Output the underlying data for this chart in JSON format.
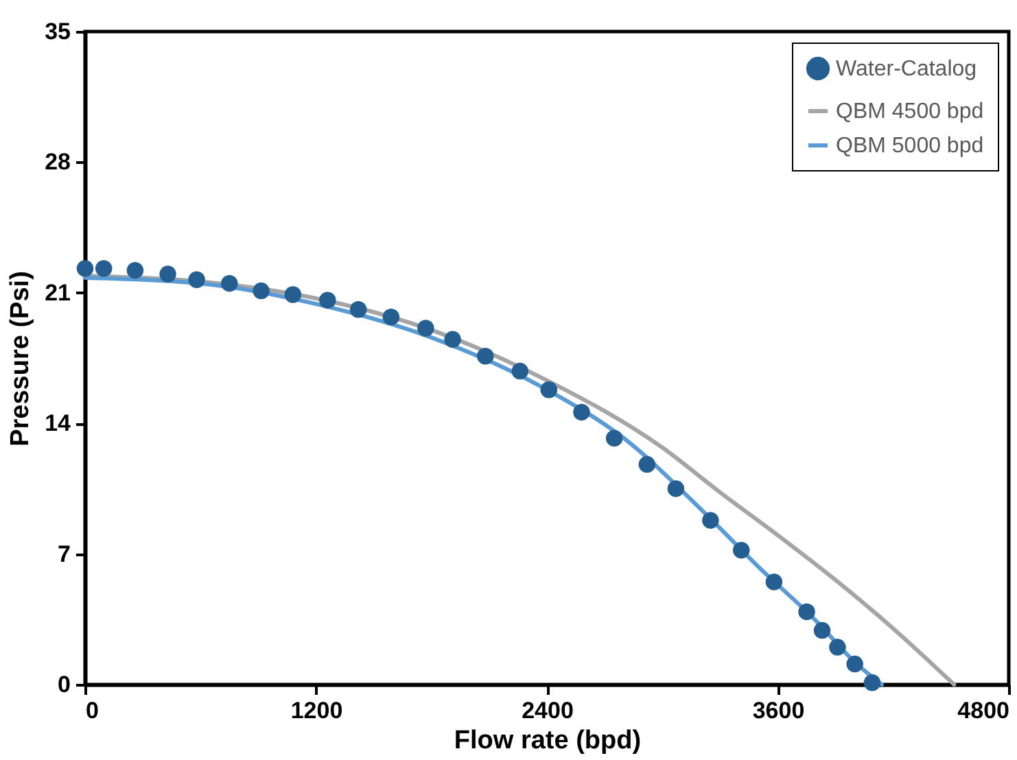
{
  "chart_data": {
    "type": "scatter",
    "xlabel": "Flow rate (bpd)",
    "ylabel": "Pressure (Psi)",
    "xlim": [
      0,
      4800
    ],
    "xticks": [
      0,
      1200,
      2400,
      3600,
      4800
    ],
    "ylim": [
      0,
      35
    ],
    "yticks": [
      0,
      7,
      14,
      21,
      28,
      35
    ],
    "grid": false,
    "legend": "top right",
    "series": [
      {
        "name": "Water-Catalog",
        "marker": "circle",
        "color": "#255e91",
        "x": [
          0,
          97,
          260,
          430,
          580,
          750,
          915,
          1080,
          1260,
          1420,
          1590,
          1770,
          1910,
          2080,
          2260,
          2410,
          2580,
          2750,
          2920,
          3070,
          3250,
          3410,
          3580,
          3750,
          3830,
          3910,
          4000,
          4090
        ],
        "values": [
          22.3,
          22.3,
          22.2,
          22.0,
          21.7,
          21.5,
          21.1,
          20.9,
          20.6,
          20.1,
          19.7,
          19.1,
          18.5,
          17.6,
          16.8,
          15.8,
          14.6,
          13.2,
          11.8,
          10.5,
          8.8,
          7.2,
          5.5,
          3.9,
          2.9,
          2.0,
          1.1,
          0.1
        ]
      },
      {
        "name": "QBM 4500 bpd",
        "type": "line",
        "marker": "none",
        "line_style": "solid",
        "color": "#a5a5a5",
        "x": [
          0,
          600,
          1200,
          1800,
          2400,
          3000,
          3300,
          3600,
          3900,
          4200,
          4516
        ],
        "values": [
          21.9,
          21.6,
          20.7,
          19.0,
          16.3,
          12.7,
          10.3,
          8.0,
          5.6,
          3.0,
          0
        ]
      },
      {
        "name": "QBM 5000 bpd",
        "type": "line",
        "marker": "none",
        "line_style": "solid",
        "color": "#5b9bd5",
        "x": [
          0,
          600,
          1200,
          1800,
          2400,
          2800,
          3200,
          3500,
          3800,
          4000,
          4140
        ],
        "values": [
          21.8,
          21.5,
          20.4,
          18.6,
          15.8,
          13.2,
          9.4,
          6.3,
          3.4,
          1.2,
          0
        ]
      }
    ]
  }
}
